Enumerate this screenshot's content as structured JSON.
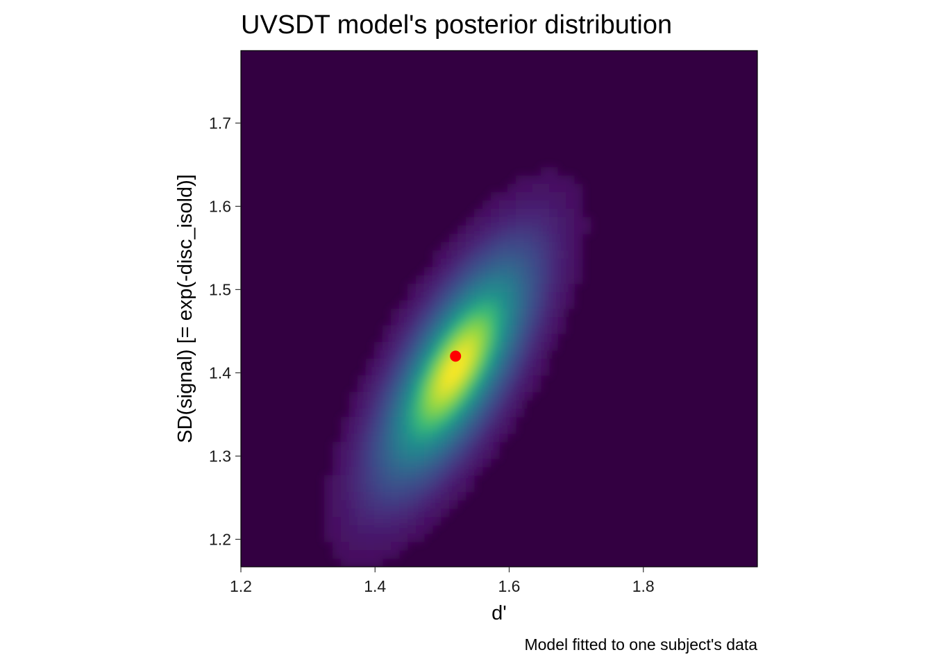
{
  "chart_data": {
    "type": "heatmap",
    "title": "UVSDT model's posterior distribution",
    "xlabel": "d'",
    "ylabel": "SD(signal) [= exp(-disc_isold)]",
    "caption": "Model fitted to one subject's data",
    "xlim": [
      1.2,
      1.97
    ],
    "ylim": [
      1.167,
      1.787
    ],
    "x_ticks": [
      1.2,
      1.4,
      1.6,
      1.8
    ],
    "x_tick_labels": [
      "1.2",
      "1.4",
      "1.6",
      "1.8"
    ],
    "y_ticks": [
      1.2,
      1.3,
      1.4,
      1.5,
      1.6,
      1.7
    ],
    "y_tick_labels": [
      "1.2",
      "1.3",
      "1.4",
      "1.5",
      "1.6",
      "1.7"
    ],
    "colormap": "viridis",
    "background_color": "#330041",
    "density": {
      "center": {
        "x": 1.52,
        "y": 1.405
      },
      "sd_x": 0.07,
      "sd_y": 0.085,
      "correlation": 0.72
    },
    "point_estimate": {
      "x": 1.52,
      "y": 1.42,
      "color": "#ff0000"
    },
    "grid": false,
    "legend": "none"
  }
}
